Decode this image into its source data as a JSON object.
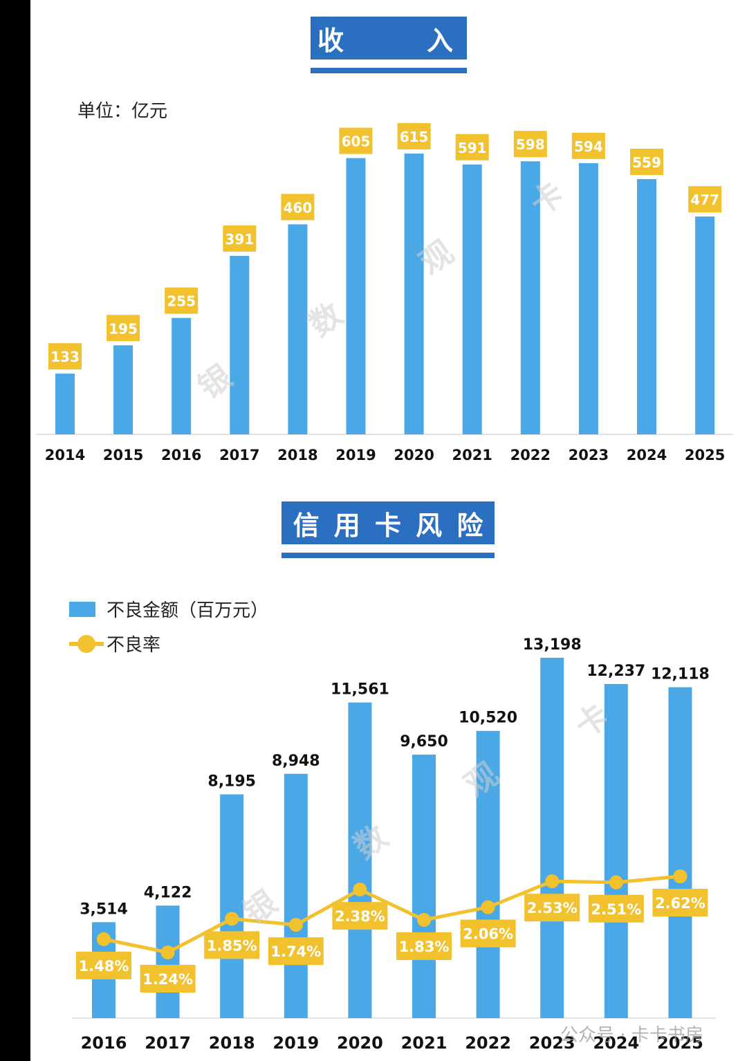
{
  "watermark": {
    "characters": [
      "银",
      "数",
      "观",
      "卡"
    ],
    "account": "公众号 · 卡卡书房"
  },
  "revenue": {
    "title_left": "收",
    "title_right": "入",
    "unit": "单位：亿元"
  },
  "risk": {
    "title_chars": [
      "信",
      "用",
      "卡",
      "风",
      "险"
    ],
    "legend": {
      "bar": "不良金额（百万元）",
      "line": "不良率"
    }
  },
  "colors": {
    "bar": "#4aa8e6",
    "label_bg": "#f2c12e",
    "title_bg": "#2b6fc0",
    "line": "#f2c12e"
  },
  "chart_data": [
    {
      "type": "bar",
      "title": "收 入",
      "unit": "单位：亿元",
      "categories": [
        "2014",
        "2015",
        "2016",
        "2017",
        "2018",
        "2019",
        "2020",
        "2021",
        "2022",
        "2023",
        "2024",
        "2025"
      ],
      "values": [
        133,
        195,
        255,
        391,
        460,
        605,
        615,
        591,
        598,
        594,
        559,
        477
      ],
      "data_labels": [
        "133",
        "195",
        "255",
        "391",
        "460",
        "605",
        "615",
        "591",
        "598",
        "594",
        "559",
        "477"
      ]
    },
    {
      "type": "bar",
      "title": "信用卡风险",
      "categories": [
        "2016",
        "2017",
        "2018",
        "2019",
        "2020",
        "2021",
        "2022",
        "2023",
        "2024",
        "2025"
      ],
      "series": [
        {
          "name": "不良金额（百万元）",
          "type": "bar",
          "values": [
            3514,
            4122,
            8195,
            8948,
            11561,
            9650,
            10520,
            13198,
            12237,
            12118
          ],
          "data_labels": [
            "3,514",
            "4,122",
            "8,195",
            "8,948",
            "11,561",
            "9,650",
            "10,520",
            "13,198",
            "12,237",
            "12,118"
          ]
        },
        {
          "name": "不良率",
          "type": "line",
          "values": [
            1.48,
            1.24,
            1.85,
            1.74,
            2.38,
            1.83,
            2.06,
            2.53,
            2.51,
            2.62
          ],
          "data_labels": [
            "1.48%",
            "1.24%",
            "1.85%",
            "1.74%",
            "2.38%",
            "1.83%",
            "2.06%",
            "2.53%",
            "2.51%",
            "2.62%"
          ]
        }
      ]
    }
  ]
}
